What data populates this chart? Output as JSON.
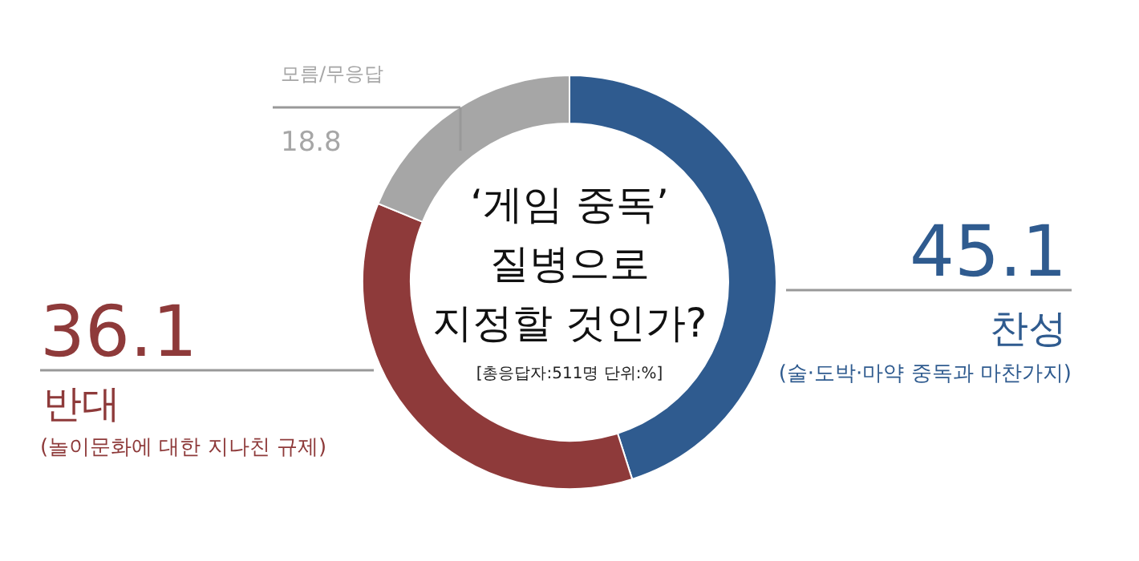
{
  "chart_data": {
    "type": "donut",
    "title": "‘게임 중독’\n질병으로\n지정할 것인가?",
    "subtitle": "[총응답자:511명 단위:%]",
    "categories": [
      "찬성",
      "반대",
      "모름/무응답"
    ],
    "values": [
      45.1,
      36.1,
      18.8
    ],
    "colors": [
      "#2f5b8f",
      "#8e3a3a",
      "#a6a6a6"
    ],
    "data_labels": true,
    "annotations": [
      "(술·도박·마약 중독과 마찬가지)",
      "(놀이문화에 대한 지나친 규제)"
    ]
  }
}
